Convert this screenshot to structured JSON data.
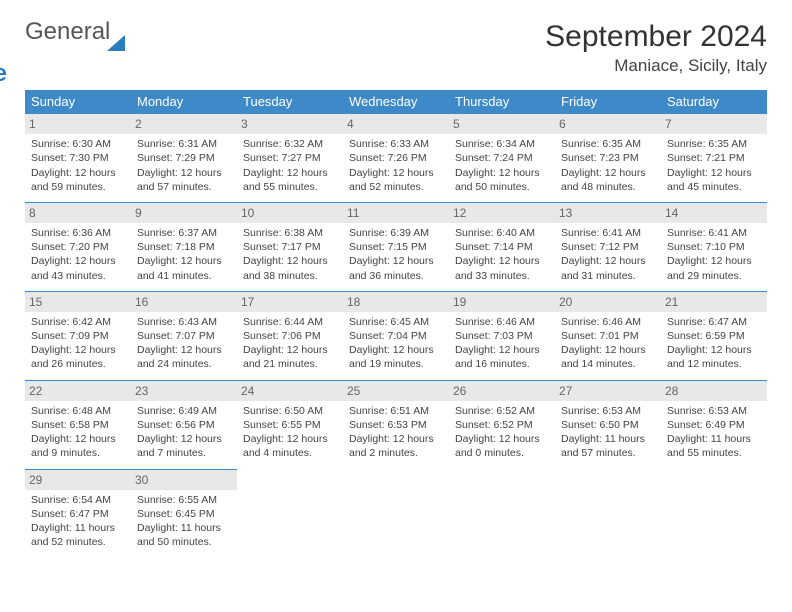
{
  "logo": {
    "line1": "General",
    "line2": "Blue"
  },
  "title": "September 2024",
  "location": "Maniace, Sicily, Italy",
  "colors": {
    "header_bg": "#3e8ac9",
    "header_text": "#ffffff",
    "daynum_bg": "#e8e8e8",
    "border": "#3e8ac9",
    "logo_blue": "#2b7bbf"
  },
  "weekdays": [
    "Sunday",
    "Monday",
    "Tuesday",
    "Wednesday",
    "Thursday",
    "Friday",
    "Saturday"
  ],
  "days": [
    {
      "n": "1",
      "sr": "Sunrise: 6:30 AM",
      "ss": "Sunset: 7:30 PM",
      "dl1": "Daylight: 12 hours",
      "dl2": "and 59 minutes."
    },
    {
      "n": "2",
      "sr": "Sunrise: 6:31 AM",
      "ss": "Sunset: 7:29 PM",
      "dl1": "Daylight: 12 hours",
      "dl2": "and 57 minutes."
    },
    {
      "n": "3",
      "sr": "Sunrise: 6:32 AM",
      "ss": "Sunset: 7:27 PM",
      "dl1": "Daylight: 12 hours",
      "dl2": "and 55 minutes."
    },
    {
      "n": "4",
      "sr": "Sunrise: 6:33 AM",
      "ss": "Sunset: 7:26 PM",
      "dl1": "Daylight: 12 hours",
      "dl2": "and 52 minutes."
    },
    {
      "n": "5",
      "sr": "Sunrise: 6:34 AM",
      "ss": "Sunset: 7:24 PM",
      "dl1": "Daylight: 12 hours",
      "dl2": "and 50 minutes."
    },
    {
      "n": "6",
      "sr": "Sunrise: 6:35 AM",
      "ss": "Sunset: 7:23 PM",
      "dl1": "Daylight: 12 hours",
      "dl2": "and 48 minutes."
    },
    {
      "n": "7",
      "sr": "Sunrise: 6:35 AM",
      "ss": "Sunset: 7:21 PM",
      "dl1": "Daylight: 12 hours",
      "dl2": "and 45 minutes."
    },
    {
      "n": "8",
      "sr": "Sunrise: 6:36 AM",
      "ss": "Sunset: 7:20 PM",
      "dl1": "Daylight: 12 hours",
      "dl2": "and 43 minutes."
    },
    {
      "n": "9",
      "sr": "Sunrise: 6:37 AM",
      "ss": "Sunset: 7:18 PM",
      "dl1": "Daylight: 12 hours",
      "dl2": "and 41 minutes."
    },
    {
      "n": "10",
      "sr": "Sunrise: 6:38 AM",
      "ss": "Sunset: 7:17 PM",
      "dl1": "Daylight: 12 hours",
      "dl2": "and 38 minutes."
    },
    {
      "n": "11",
      "sr": "Sunrise: 6:39 AM",
      "ss": "Sunset: 7:15 PM",
      "dl1": "Daylight: 12 hours",
      "dl2": "and 36 minutes."
    },
    {
      "n": "12",
      "sr": "Sunrise: 6:40 AM",
      "ss": "Sunset: 7:14 PM",
      "dl1": "Daylight: 12 hours",
      "dl2": "and 33 minutes."
    },
    {
      "n": "13",
      "sr": "Sunrise: 6:41 AM",
      "ss": "Sunset: 7:12 PM",
      "dl1": "Daylight: 12 hours",
      "dl2": "and 31 minutes."
    },
    {
      "n": "14",
      "sr": "Sunrise: 6:41 AM",
      "ss": "Sunset: 7:10 PM",
      "dl1": "Daylight: 12 hours",
      "dl2": "and 29 minutes."
    },
    {
      "n": "15",
      "sr": "Sunrise: 6:42 AM",
      "ss": "Sunset: 7:09 PM",
      "dl1": "Daylight: 12 hours",
      "dl2": "and 26 minutes."
    },
    {
      "n": "16",
      "sr": "Sunrise: 6:43 AM",
      "ss": "Sunset: 7:07 PM",
      "dl1": "Daylight: 12 hours",
      "dl2": "and 24 minutes."
    },
    {
      "n": "17",
      "sr": "Sunrise: 6:44 AM",
      "ss": "Sunset: 7:06 PM",
      "dl1": "Daylight: 12 hours",
      "dl2": "and 21 minutes."
    },
    {
      "n": "18",
      "sr": "Sunrise: 6:45 AM",
      "ss": "Sunset: 7:04 PM",
      "dl1": "Daylight: 12 hours",
      "dl2": "and 19 minutes."
    },
    {
      "n": "19",
      "sr": "Sunrise: 6:46 AM",
      "ss": "Sunset: 7:03 PM",
      "dl1": "Daylight: 12 hours",
      "dl2": "and 16 minutes."
    },
    {
      "n": "20",
      "sr": "Sunrise: 6:46 AM",
      "ss": "Sunset: 7:01 PM",
      "dl1": "Daylight: 12 hours",
      "dl2": "and 14 minutes."
    },
    {
      "n": "21",
      "sr": "Sunrise: 6:47 AM",
      "ss": "Sunset: 6:59 PM",
      "dl1": "Daylight: 12 hours",
      "dl2": "and 12 minutes."
    },
    {
      "n": "22",
      "sr": "Sunrise: 6:48 AM",
      "ss": "Sunset: 6:58 PM",
      "dl1": "Daylight: 12 hours",
      "dl2": "and 9 minutes."
    },
    {
      "n": "23",
      "sr": "Sunrise: 6:49 AM",
      "ss": "Sunset: 6:56 PM",
      "dl1": "Daylight: 12 hours",
      "dl2": "and 7 minutes."
    },
    {
      "n": "24",
      "sr": "Sunrise: 6:50 AM",
      "ss": "Sunset: 6:55 PM",
      "dl1": "Daylight: 12 hours",
      "dl2": "and 4 minutes."
    },
    {
      "n": "25",
      "sr": "Sunrise: 6:51 AM",
      "ss": "Sunset: 6:53 PM",
      "dl1": "Daylight: 12 hours",
      "dl2": "and 2 minutes."
    },
    {
      "n": "26",
      "sr": "Sunrise: 6:52 AM",
      "ss": "Sunset: 6:52 PM",
      "dl1": "Daylight: 12 hours",
      "dl2": "and 0 minutes."
    },
    {
      "n": "27",
      "sr": "Sunrise: 6:53 AM",
      "ss": "Sunset: 6:50 PM",
      "dl1": "Daylight: 11 hours",
      "dl2": "and 57 minutes."
    },
    {
      "n": "28",
      "sr": "Sunrise: 6:53 AM",
      "ss": "Sunset: 6:49 PM",
      "dl1": "Daylight: 11 hours",
      "dl2": "and 55 minutes."
    },
    {
      "n": "29",
      "sr": "Sunrise: 6:54 AM",
      "ss": "Sunset: 6:47 PM",
      "dl1": "Daylight: 11 hours",
      "dl2": "and 52 minutes."
    },
    {
      "n": "30",
      "sr": "Sunrise: 6:55 AM",
      "ss": "Sunset: 6:45 PM",
      "dl1": "Daylight: 11 hours",
      "dl2": "and 50 minutes."
    }
  ]
}
